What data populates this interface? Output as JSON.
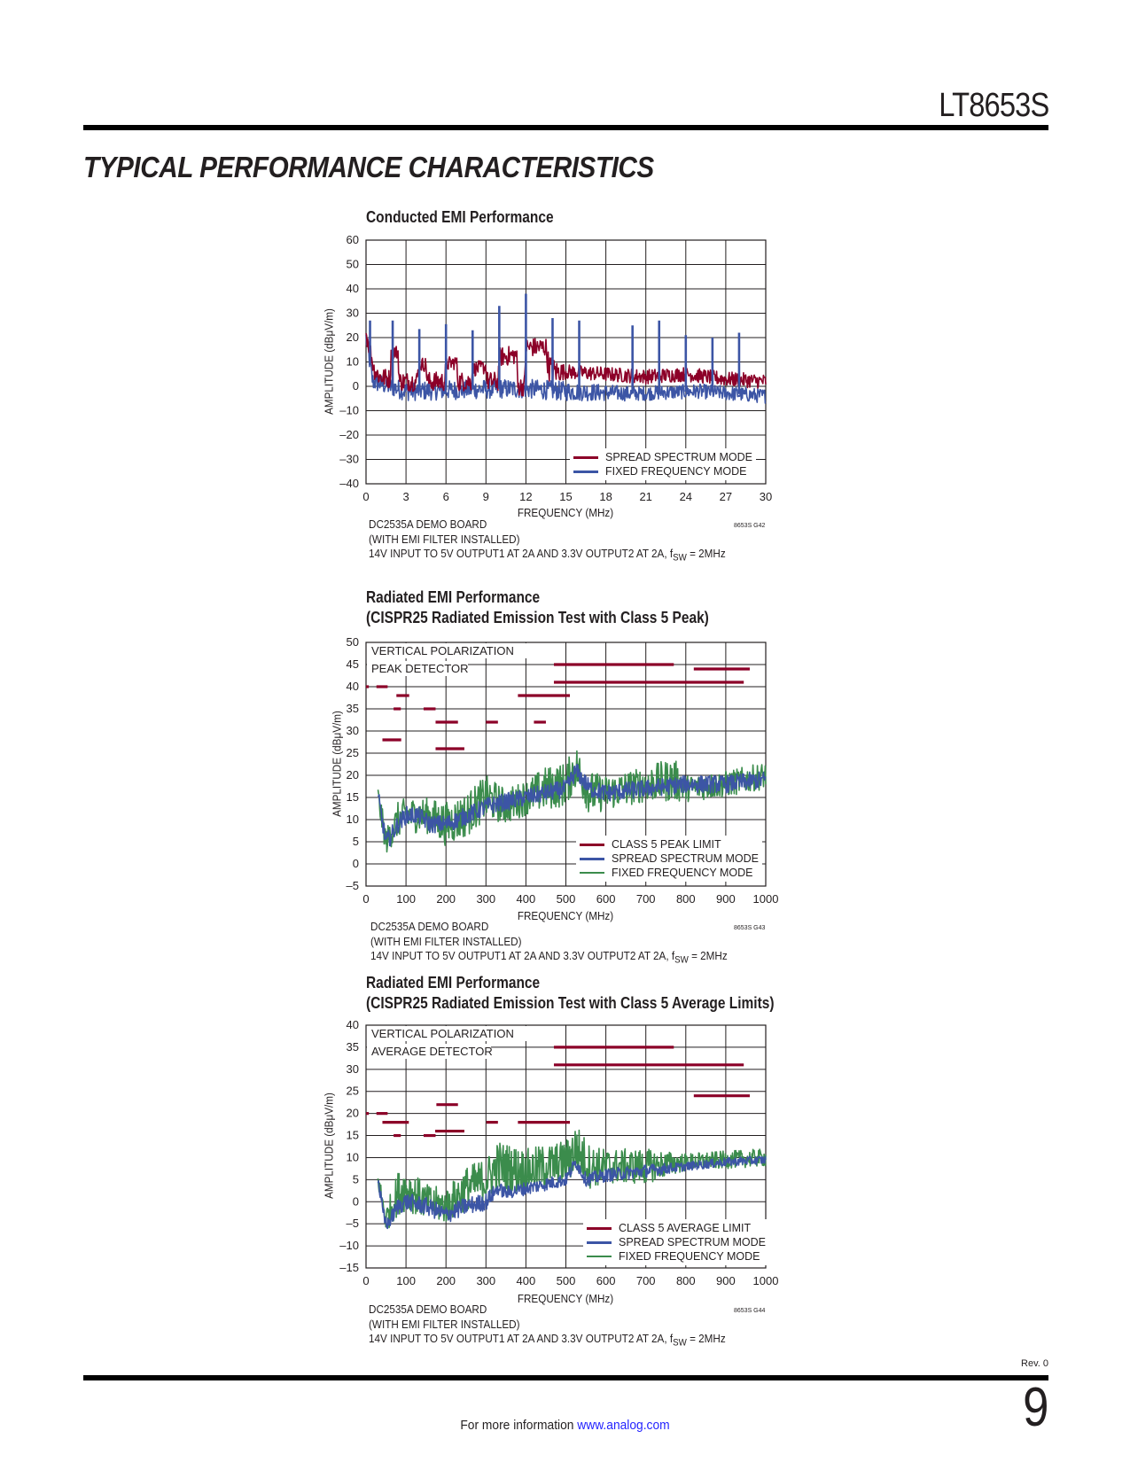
{
  "header": {
    "part_number": "LT8653S",
    "section_title": "TYPICAL PERFORMANCE CHARACTERISTICS"
  },
  "footer": {
    "rev": "Rev. 0",
    "page_number": "9",
    "info_text": "For more information",
    "link": "www.analog.com"
  },
  "colors": {
    "spread": "#3c55a5",
    "spread_conducted": "#8c0028",
    "fixed_conducted": "#3c55a5",
    "fixed": "#3b8c4c",
    "limit": "#8c0028"
  },
  "charts_meta": [
    {
      "title1": "Conducted EMI Performance",
      "notes": [
        "DC2535A DEMO BOARD",
        "(WITH EMI FILTER INSTALLED)"
      ],
      "cond_prefix": "14V INPUT TO 5V OUTPUT1 AT 2A AND 3.3V OUTPUT2 AT 2A, f",
      "cond_sub": "SW",
      "cond_suffix": " = 2MHz",
      "graph_id": "8653S G42"
    },
    {
      "title1": "Radiated EMI Performance",
      "title2": "(CISPR25 Radiated Emission Test with Class 5 Peak)",
      "annot1": "VERTICAL POLARIZATION",
      "annot2": "PEAK DETECTOR",
      "notes": [
        "DC2535A DEMO BOARD",
        "(WITH EMI FILTER INSTALLED)"
      ],
      "cond_prefix": "14V INPUT TO 5V OUTPUT1 AT 2A AND 3.3V OUTPUT2 AT 2A, f",
      "cond_sub": "SW",
      "cond_suffix": " = 2MHz",
      "graph_id": "8653S G43"
    },
    {
      "title1": "Radiated EMI Performance",
      "title2": "(CISPR25 Radiated Emission Test with Class 5 Average Limits)",
      "annot1": "VERTICAL POLARIZATION",
      "annot2": "AVERAGE DETECTOR",
      "notes": [
        "DC2535A DEMO BOARD",
        "(WITH EMI FILTER INSTALLED)"
      ],
      "cond_prefix": "14V INPUT TO 5V OUTPUT1 AT 2A AND 3.3V OUTPUT2 AT 2A, f",
      "cond_sub": "SW",
      "cond_suffix": " = 2MHz",
      "graph_id": "8653S G44"
    }
  ],
  "chart_data": [
    {
      "type": "line",
      "title": "Conducted EMI Performance",
      "xlabel": "FREQUENCY (MHz)",
      "ylabel": "AMPLITUDE (dBμV/m)",
      "xlim": [
        0,
        30
      ],
      "ylim": [
        -40,
        60
      ],
      "xticks": [
        0,
        3,
        6,
        9,
        12,
        15,
        18,
        21,
        24,
        27,
        30
      ],
      "yticks": [
        60,
        50,
        40,
        30,
        20,
        10,
        0,
        -10,
        -20,
        -30,
        -40
      ],
      "grid": true,
      "legend_position": "bottom-right",
      "series": [
        {
          "name": "FIXED FREQUENCY MODE",
          "color": "#3c55a5",
          "envelope_f_center_halfwidth": [
            [
              0,
              20,
              4
            ],
            [
              0.5,
              2,
              4
            ],
            [
              3,
              -2,
              4
            ],
            [
              10,
              -1,
              4
            ],
            [
              12,
              -1,
              4
            ],
            [
              15,
              -2,
              4
            ],
            [
              20,
              -3,
              3
            ],
            [
              25,
              -2,
              3
            ],
            [
              30,
              -4,
              3
            ]
          ],
          "spikes_f_db": [
            [
              0.3,
              27
            ],
            [
              2,
              27
            ],
            [
              4,
              23.5
            ],
            [
              6,
              25.5
            ],
            [
              8,
              23
            ],
            [
              10,
              33
            ],
            [
              12,
              38
            ],
            [
              14,
              28
            ],
            [
              16,
              27
            ],
            [
              20,
              25
            ],
            [
              22,
              27
            ],
            [
              24,
              21
            ],
            [
              26,
              20
            ],
            [
              28,
              22
            ]
          ]
        },
        {
          "name": "SPREAD SPECTRUM MODE",
          "color": "#8c0028",
          "envelope_f_center_halfwidth": [
            [
              0,
              22,
              4
            ],
            [
              0.3,
              15,
              4
            ],
            [
              0.6,
              7,
              4
            ],
            [
              1.0,
              4,
              4
            ],
            [
              1.8,
              3,
              4
            ],
            [
              1.9,
              14,
              3
            ],
            [
              2.4,
              14,
              3
            ],
            [
              2.5,
              2,
              4
            ],
            [
              3.8,
              2,
              4
            ],
            [
              4.0,
              9,
              3
            ],
            [
              4.5,
              9,
              3
            ],
            [
              4.6,
              2,
              4
            ],
            [
              5.9,
              2,
              4
            ],
            [
              6.0,
              9,
              3
            ],
            [
              6.8,
              10,
              3
            ],
            [
              6.9,
              2,
              4
            ],
            [
              7.9,
              2,
              4
            ],
            [
              8.0,
              7,
              3
            ],
            [
              9.0,
              8,
              3
            ],
            [
              9.1,
              2,
              4
            ],
            [
              9.9,
              2,
              4
            ],
            [
              10.0,
              12,
              4
            ],
            [
              11.3,
              13,
              4
            ],
            [
              11.4,
              0,
              4
            ],
            [
              11.9,
              0,
              4
            ],
            [
              12.0,
              16,
              4
            ],
            [
              13.5,
              16,
              4
            ],
            [
              13.7,
              8,
              6
            ],
            [
              14.2,
              6,
              5
            ],
            [
              15,
              6,
              3
            ],
            [
              18,
              5,
              3
            ],
            [
              21,
              4,
              3
            ],
            [
              24,
              5,
              3
            ],
            [
              27,
              3,
              3
            ],
            [
              30,
              2,
              3
            ]
          ]
        }
      ],
      "legend": [
        {
          "label": "SPREAD SPECTRUM MODE",
          "color": "#8c0028"
        },
        {
          "label": "FIXED FREQUENCY MODE",
          "color": "#3c55a5"
        }
      ]
    },
    {
      "type": "line",
      "title": "Radiated EMI Performance (CISPR25 Radiated Emission Test with Class 5 Peak)",
      "xlabel": "FREQUENCY (MHz)",
      "ylabel": "AMPLITUDE (dBμV/m)",
      "xlim": [
        0,
        1000
      ],
      "ylim": [
        -5,
        50
      ],
      "xticks": [
        0,
        100,
        200,
        300,
        400,
        500,
        600,
        700,
        800,
        900,
        1000
      ],
      "yticks": [
        50,
        45,
        40,
        35,
        30,
        25,
        20,
        15,
        10,
        5,
        0,
        -5
      ],
      "grid": true,
      "legend_position": "bottom-right",
      "series": [
        {
          "name": "FIXED FREQUENCY MODE",
          "color": "#3b8c4c",
          "envelope_f_center_halfwidth": [
            [
              30,
              15,
              3
            ],
            [
              50,
              5,
              3
            ],
            [
              80,
              10,
              4
            ],
            [
              100,
              11,
              4
            ],
            [
              150,
              11,
              4
            ],
            [
              200,
              9,
              5
            ],
            [
              250,
              11,
              5
            ],
            [
              300,
              15,
              5
            ],
            [
              350,
              13,
              4
            ],
            [
              400,
              15,
              4
            ],
            [
              450,
              17,
              5
            ],
            [
              500,
              18,
              5
            ],
            [
              525,
              22,
              5
            ],
            [
              560,
              16,
              5
            ],
            [
              600,
              16,
              4
            ],
            [
              700,
              18,
              4
            ],
            [
              770,
              19,
              5
            ],
            [
              800,
              17,
              3
            ],
            [
              900,
              18,
              3
            ],
            [
              1000,
              20,
              3
            ]
          ]
        },
        {
          "name": "SPREAD SPECTRUM MODE",
          "color": "#3c55a5",
          "envelope_f_center_halfwidth": [
            [
              30,
              15,
              2
            ],
            [
              40,
              10,
              2
            ],
            [
              50,
              5,
              2
            ],
            [
              60,
              6,
              2
            ],
            [
              80,
              9,
              2
            ],
            [
              100,
              11,
              2
            ],
            [
              130,
              11,
              2
            ],
            [
              160,
              9,
              2
            ],
            [
              200,
              9,
              2
            ],
            [
              230,
              10,
              2
            ],
            [
              280,
              12,
              2
            ],
            [
              300,
              13,
              2
            ],
            [
              350,
              14,
              2
            ],
            [
              400,
              15,
              2
            ],
            [
              450,
              16,
              2
            ],
            [
              500,
              17,
              2
            ],
            [
              525,
              21,
              2
            ],
            [
              560,
              17,
              2
            ],
            [
              600,
              16,
              2
            ],
            [
              700,
              17,
              2
            ],
            [
              800,
              18,
              2
            ],
            [
              900,
              18,
              2
            ],
            [
              1000,
              19,
              2
            ]
          ]
        }
      ],
      "limits_fstart_fend_db": [
        [
          0,
          7,
          40
        ],
        [
          26,
          54,
          40
        ],
        [
          41,
          88,
          28
        ],
        [
          69,
          87,
          35
        ],
        [
          76,
          108,
          38
        ],
        [
          144,
          174,
          35
        ],
        [
          174,
          230,
          32
        ],
        [
          174,
          246,
          26
        ],
        [
          300,
          330,
          32
        ],
        [
          380,
          510,
          38
        ],
        [
          420,
          450,
          32
        ],
        [
          470,
          770,
          45
        ],
        [
          470,
          945,
          41
        ],
        [
          820,
          960,
          44
        ]
      ],
      "legend": [
        {
          "label": "CLASS 5 PEAK LIMIT",
          "color": "#8c0028"
        },
        {
          "label": "SPREAD SPECTRUM MODE",
          "color": "#3c55a5"
        },
        {
          "label": "FIXED FREQUENCY MODE",
          "color": "#3b8c4c"
        }
      ]
    },
    {
      "type": "line",
      "title": "Radiated EMI Performance (CISPR25 Radiated Emission Test with Class 5 Average Limits)",
      "xlabel": "FREQUENCY (MHz)",
      "ylabel": "AMPLITUDE (dBμV/m)",
      "xlim": [
        0,
        1000
      ],
      "ylim": [
        -15,
        40
      ],
      "xticks": [
        0,
        100,
        200,
        300,
        400,
        500,
        600,
        700,
        800,
        900,
        1000
      ],
      "yticks": [
        40,
        35,
        30,
        25,
        20,
        15,
        10,
        5,
        0,
        -5,
        -10,
        -15
      ],
      "grid": true,
      "legend_position": "bottom-right",
      "series": [
        {
          "name": "FIXED FREQUENCY MODE",
          "color": "#3b8c4c",
          "envelope_f_center_halfwidth": [
            [
              30,
              5,
              2
            ],
            [
              50,
              -4,
              3
            ],
            [
              80,
              2,
              5
            ],
            [
              100,
              3,
              5
            ],
            [
              150,
              0,
              4
            ],
            [
              200,
              -1,
              4
            ],
            [
              250,
              3,
              5
            ],
            [
              300,
              5,
              5
            ],
            [
              330,
              8,
              6
            ],
            [
              400,
              7,
              5
            ],
            [
              450,
              8,
              5
            ],
            [
              500,
              9,
              5
            ],
            [
              525,
              12,
              6
            ],
            [
              560,
              8,
              5
            ],
            [
              600,
              8,
              4
            ],
            [
              700,
              8,
              4
            ],
            [
              800,
              9,
              2
            ],
            [
              1000,
              10,
              2
            ]
          ]
        },
        {
          "name": "SPREAD SPECTRUM MODE",
          "color": "#3c55a5",
          "envelope_f_center_halfwidth": [
            [
              30,
              5,
              1.5
            ],
            [
              45,
              -4,
              2
            ],
            [
              55,
              -5,
              1.5
            ],
            [
              80,
              -1,
              2
            ],
            [
              100,
              0,
              2
            ],
            [
              150,
              -1,
              2
            ],
            [
              200,
              -3,
              2
            ],
            [
              250,
              -1,
              2
            ],
            [
              300,
              0,
              2
            ],
            [
              330,
              3,
              1.5
            ],
            [
              350,
              2,
              1.5
            ],
            [
              400,
              3,
              1.5
            ],
            [
              450,
              4,
              1.5
            ],
            [
              500,
              5,
              1.5
            ],
            [
              525,
              9,
              1.5
            ],
            [
              550,
              5,
              1.5
            ],
            [
              600,
              6,
              1.5
            ],
            [
              700,
              7,
              1.5
            ],
            [
              800,
              8,
              1
            ],
            [
              900,
              9,
              1
            ],
            [
              1000,
              9.5,
              1
            ]
          ]
        }
      ],
      "limits_fstart_fend_db": [
        [
          0,
          7,
          20
        ],
        [
          26,
          54,
          20
        ],
        [
          41,
          107,
          18
        ],
        [
          69,
          87,
          15
        ],
        [
          144,
          174,
          15
        ],
        [
          176,
          230,
          22
        ],
        [
          173,
          246,
          16
        ],
        [
          301,
          330,
          18
        ],
        [
          380,
          510,
          18
        ],
        [
          470,
          770,
          35
        ],
        [
          470,
          945,
          31
        ],
        [
          820,
          960,
          24
        ]
      ],
      "legend": [
        {
          "label": "CLASS 5 AVERAGE LIMIT",
          "color": "#8c0028"
        },
        {
          "label": "SPREAD SPECTRUM MODE",
          "color": "#3c55a5"
        },
        {
          "label": "FIXED FREQUENCY MODE",
          "color": "#3b8c4c"
        }
      ]
    }
  ]
}
